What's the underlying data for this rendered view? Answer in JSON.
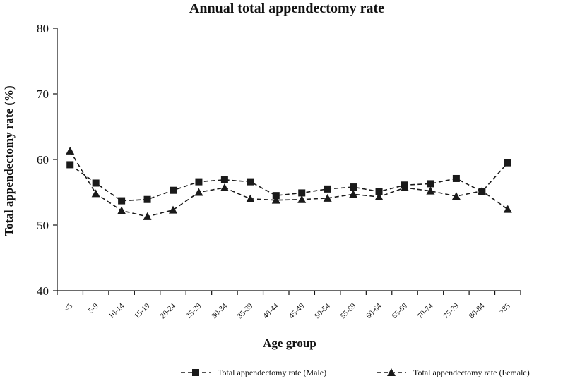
{
  "chart_data": {
    "type": "line",
    "title": "Annual total appendectomy rate",
    "xlabel": "Age group",
    "ylabel": "Total appendectomy rate (%)",
    "ylim": [
      40,
      80
    ],
    "yticks": [
      "40",
      "50",
      "60",
      "70",
      "80"
    ],
    "grid": false,
    "legend_position": "bottom",
    "categories": [
      "<5",
      "5-9",
      "10-14",
      "15-19",
      "20-24",
      "25-29",
      "30-34",
      "35-39",
      "40-44",
      "45-49",
      "50-54",
      "55-59",
      "60-64",
      "65-69",
      "70-74",
      "75-79",
      "80-84",
      ">85"
    ],
    "series": [
      {
        "name": "Total appendectomy rate (Male)",
        "marker": "square",
        "line_style": "dashed",
        "color": "#1a1a1a",
        "values": [
          59.2,
          56.4,
          53.7,
          53.9,
          55.3,
          56.6,
          56.9,
          56.6,
          54.5,
          54.9,
          55.5,
          55.8,
          55.1,
          56.1,
          56.3,
          57.1,
          55.1,
          59.5
        ]
      },
      {
        "name": "Total appendectomy rate (Female)",
        "marker": "triangle",
        "line_style": "dashed",
        "color": "#1a1a1a",
        "values": [
          61.3,
          54.8,
          52.2,
          51.3,
          52.3,
          55.0,
          55.7,
          54.0,
          53.8,
          53.9,
          54.1,
          54.7,
          54.3,
          55.7,
          55.2,
          54.4,
          55.2,
          52.4
        ]
      }
    ]
  }
}
